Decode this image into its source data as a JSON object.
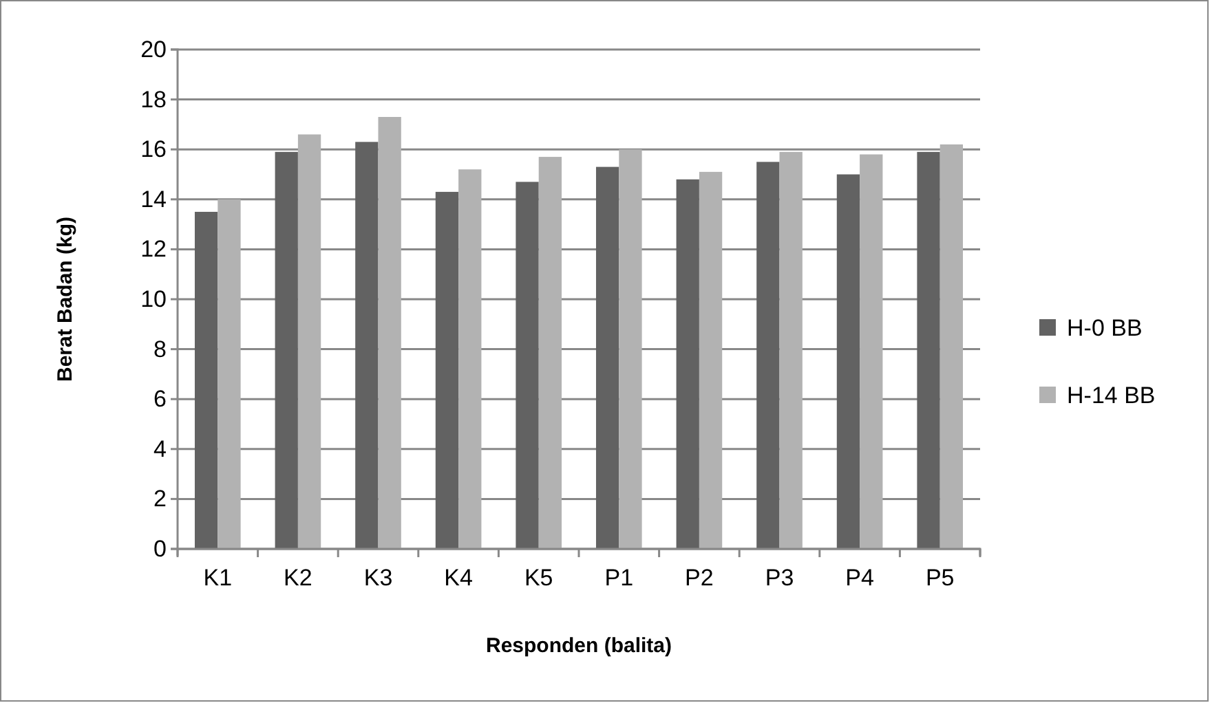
{
  "chart_data": {
    "type": "bar",
    "xlabel": "Responden (balita)",
    "ylabel": "Berat Badan (kg)",
    "categories": [
      "K1",
      "K2",
      "K3",
      "K4",
      "K5",
      "P1",
      "P2",
      "P3",
      "P4",
      "P5"
    ],
    "series": [
      {
        "name": "H-0 BB",
        "color": "#626262",
        "values": [
          13.5,
          15.9,
          16.3,
          14.3,
          14.7,
          15.3,
          14.8,
          15.5,
          15.0,
          15.9
        ]
      },
      {
        "name": "H-14 BB",
        "color": "#b2b2b2",
        "values": [
          14.0,
          16.6,
          17.3,
          15.2,
          15.7,
          16.0,
          15.1,
          15.9,
          15.8,
          16.2
        ]
      }
    ],
    "ylim": [
      0,
      20
    ],
    "yticks": [
      0,
      2,
      4,
      6,
      8,
      10,
      12,
      14,
      16,
      18,
      20
    ],
    "grid": "y",
    "legend": "right"
  }
}
